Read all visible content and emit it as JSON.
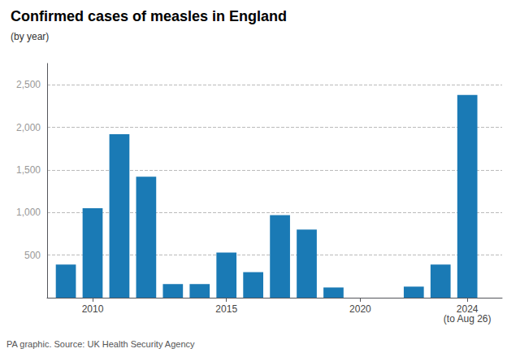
{
  "chart_data": {
    "type": "bar",
    "title": "Confirmed cases of measles in England",
    "subtitle": "(by year)",
    "source": "PA graphic. Source: UK Health Security Agency",
    "annotations": [
      {
        "text": "(to Aug 26)",
        "x": 2024
      }
    ],
    "x": [
      2009,
      2010,
      2011,
      2012,
      2013,
      2014,
      2015,
      2016,
      2017,
      2018,
      2019,
      2020,
      2021,
      2022,
      2023,
      2024
    ],
    "values": [
      390,
      1050,
      1920,
      1420,
      160,
      160,
      530,
      300,
      970,
      800,
      120,
      0,
      0,
      130,
      390,
      2380
    ],
    "color": "#1a7ab5",
    "xlim": [
      2008.3,
      2025.3
    ],
    "xticks": [
      2010,
      2015,
      2020,
      2024
    ],
    "ylim": [
      0,
      2750
    ],
    "yticks": [
      500,
      {
        "value": 1000,
        "label": "1,000"
      },
      {
        "value": 1500,
        "label": "1,500"
      },
      {
        "value": 2000,
        "label": "2,000"
      },
      {
        "value": 2500,
        "label": "2,500"
      }
    ],
    "grid": true
  }
}
